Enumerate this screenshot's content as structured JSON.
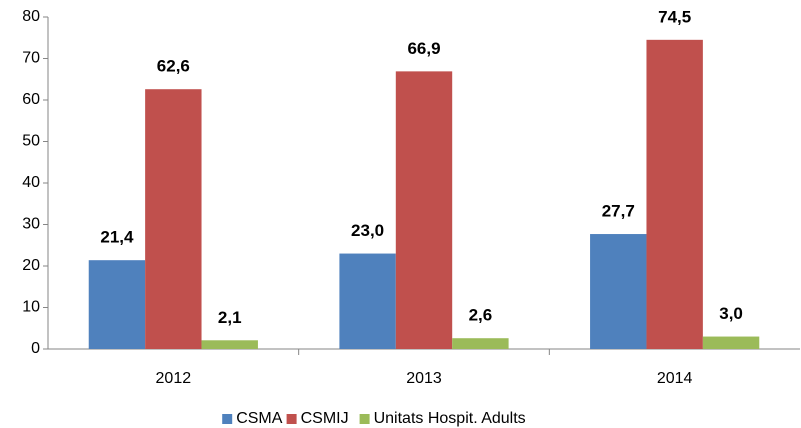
{
  "chart_data": {
    "type": "bar",
    "categories": [
      "2012",
      "2013",
      "2014"
    ],
    "series": [
      {
        "name": "CSMA",
        "color": "#4f81bd",
        "values": [
          21.4,
          23.0,
          27.7
        ],
        "value_labels": [
          "21,4",
          "23,0",
          "27,7"
        ]
      },
      {
        "name": "CSMIJ",
        "color": "#c0504d",
        "values": [
          62.6,
          66.9,
          74.5
        ],
        "value_labels": [
          "62,6",
          "66,9",
          "74,5"
        ]
      },
      {
        "name": "Unitats Hospit. Adults",
        "color": "#9bbb59",
        "values": [
          2.1,
          2.6,
          3.0
        ],
        "value_labels": [
          "2,1",
          "2,6",
          "3,0"
        ]
      }
    ],
    "ylim": [
      0,
      80
    ],
    "yticks": [
      0,
      10,
      20,
      30,
      40,
      50,
      60,
      70,
      80
    ],
    "grid": false,
    "legend": "bottom"
  }
}
